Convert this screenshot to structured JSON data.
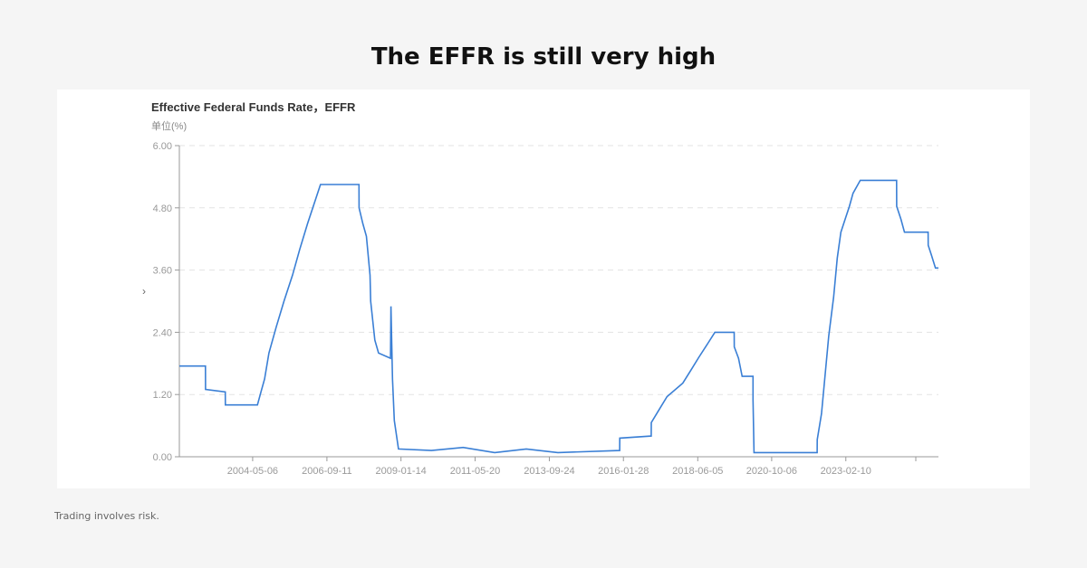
{
  "page": {
    "headline": "The EFFR is still very high",
    "disclaimer": "Trading involves risk.",
    "arrow": "›"
  },
  "chart_data": {
    "type": "line",
    "title": "Effective Federal Funds Rate，EFFR",
    "ylabel": "单位(%)",
    "ylim": [
      0,
      6
    ],
    "yticks": [
      "0.00",
      "1.20",
      "2.40",
      "3.60",
      "4.80",
      "6.00"
    ],
    "xticks": [
      "2004-05-06",
      "2006-09-11",
      "2009-01-14",
      "2011-05-20",
      "2013-09-24",
      "2016-01-28",
      "2018-06-05",
      "2020-10-06",
      "2023-02-10"
    ],
    "xlim": [
      "2002-01-10",
      "2026-01-15"
    ],
    "grid": "horizontal-dashed",
    "color": "#3a7fd5",
    "series": [
      {
        "points": [
          [
            "2002-01-10",
            1.75
          ],
          [
            "2002-11-07",
            1.75
          ],
          [
            "2002-11-08",
            1.3
          ],
          [
            "2003-06-25",
            1.25
          ],
          [
            "2003-06-26",
            1.0
          ],
          [
            "2004-06-30",
            1.0
          ],
          [
            "2004-08-10",
            1.25
          ],
          [
            "2004-09-21",
            1.5
          ],
          [
            "2004-11-10",
            2.0
          ],
          [
            "2005-02-02",
            2.5
          ],
          [
            "2005-05-03",
            3.0
          ],
          [
            "2005-08-09",
            3.5
          ],
          [
            "2005-11-01",
            4.0
          ],
          [
            "2006-01-31",
            4.5
          ],
          [
            "2006-05-10",
            5.0
          ],
          [
            "2006-06-29",
            5.25
          ],
          [
            "2007-09-17",
            5.25
          ],
          [
            "2007-09-18",
            4.8
          ],
          [
            "2007-10-31",
            4.5
          ],
          [
            "2007-12-11",
            4.25
          ],
          [
            "2008-01-22",
            3.5
          ],
          [
            "2008-01-30",
            3.0
          ],
          [
            "2008-03-18",
            2.25
          ],
          [
            "2008-04-30",
            2.0
          ],
          [
            "2008-09-15",
            1.9
          ],
          [
            "2008-09-20",
            2.9
          ],
          [
            "2008-10-08",
            1.5
          ],
          [
            "2008-10-29",
            0.7
          ],
          [
            "2008-12-16",
            0.15
          ],
          [
            "2010-01-01",
            0.12
          ],
          [
            "2011-01-01",
            0.18
          ],
          [
            "2012-01-01",
            0.08
          ],
          [
            "2013-01-01",
            0.15
          ],
          [
            "2014-01-01",
            0.08
          ],
          [
            "2015-12-16",
            0.12
          ],
          [
            "2015-12-17",
            0.36
          ],
          [
            "2016-12-14",
            0.4
          ],
          [
            "2016-12-15",
            0.66
          ],
          [
            "2017-03-16",
            0.91
          ],
          [
            "2017-06-15",
            1.16
          ],
          [
            "2017-12-14",
            1.42
          ],
          [
            "2018-03-22",
            1.68
          ],
          [
            "2018-06-14",
            1.91
          ],
          [
            "2018-09-27",
            2.18
          ],
          [
            "2018-12-20",
            2.4
          ],
          [
            "2019-07-31",
            2.4
          ],
          [
            "2019-08-01",
            2.12
          ],
          [
            "2019-09-19",
            1.9
          ],
          [
            "2019-10-31",
            1.55
          ],
          [
            "2020-03-04",
            1.55
          ],
          [
            "2020-03-05",
            1.1
          ],
          [
            "2020-03-16",
            0.08
          ],
          [
            "2022-03-16",
            0.08
          ],
          [
            "2022-03-17",
            0.33
          ],
          [
            "2022-05-05",
            0.83
          ],
          [
            "2022-06-16",
            1.58
          ],
          [
            "2022-07-28",
            2.33
          ],
          [
            "2022-09-22",
            3.08
          ],
          [
            "2022-11-03",
            3.83
          ],
          [
            "2022-12-15",
            4.33
          ],
          [
            "2023-02-02",
            4.58
          ],
          [
            "2023-03-23",
            4.83
          ],
          [
            "2023-05-04",
            5.08
          ],
          [
            "2023-07-27",
            5.33
          ],
          [
            "2024-09-18",
            5.33
          ],
          [
            "2024-09-19",
            4.83
          ],
          [
            "2024-11-08",
            4.58
          ],
          [
            "2024-12-19",
            4.33
          ],
          [
            "2025-09-18",
            4.33
          ],
          [
            "2025-09-19",
            4.08
          ],
          [
            "2025-10-30",
            3.87
          ],
          [
            "2025-12-11",
            3.64
          ],
          [
            "2026-01-15",
            3.64
          ]
        ]
      }
    ]
  }
}
